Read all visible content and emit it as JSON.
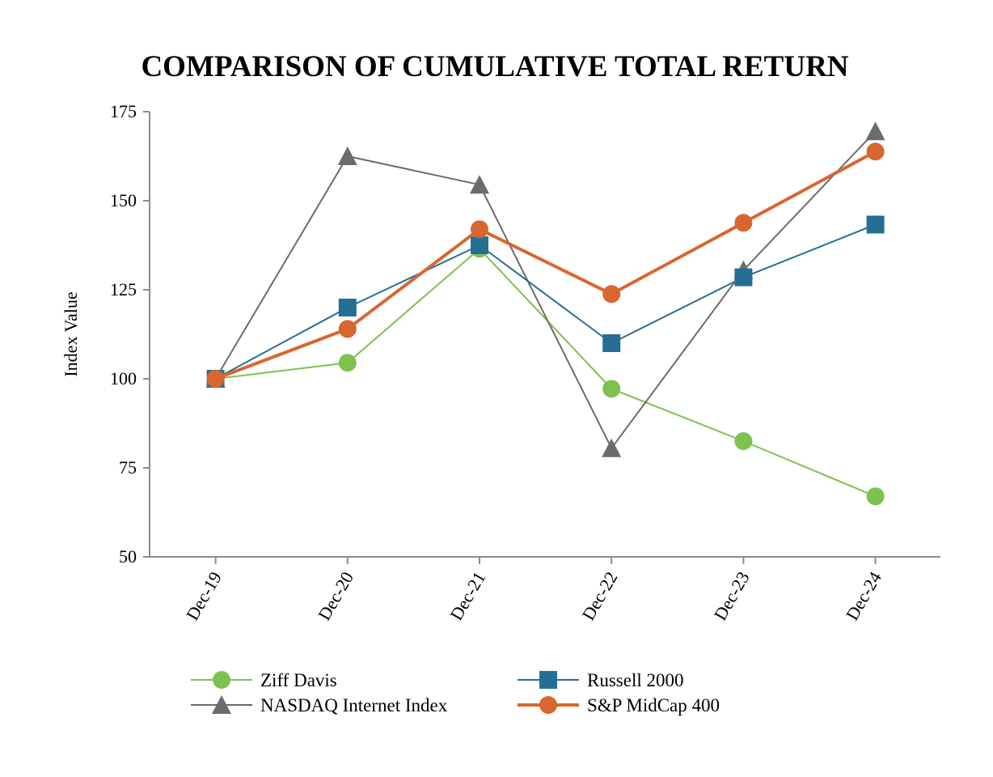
{
  "chart_data": {
    "type": "line",
    "title": "COMPARISON OF CUMULATIVE TOTAL RETURN",
    "xlabel": "",
    "ylabel": "Index Value",
    "ylim": [
      50,
      175
    ],
    "yticks": [
      "50",
      "75",
      "100",
      "125",
      "150",
      "175"
    ],
    "categories": [
      "Dec-19",
      "Dec-20",
      "Dec-21",
      "Dec-22",
      "Dec-23",
      "Dec-24"
    ],
    "grid": false,
    "legend_position": "bottom",
    "series": [
      {
        "name": "Ziff Davis",
        "values": [
          100,
          104.5,
          136.5,
          97.2,
          82.5,
          67
        ],
        "color": "#7dc24f",
        "marker": "circle",
        "line": "thin"
      },
      {
        "name": "Russell 2000",
        "values": [
          100,
          120,
          137.5,
          110,
          128.5,
          143.3
        ],
        "color": "#266f94",
        "marker": "square",
        "line": "thin"
      },
      {
        "name": "NASDAQ Internet Index",
        "values": [
          100,
          162.5,
          154.5,
          80.5,
          130.5,
          169.5
        ],
        "color": "#6b6b6b",
        "marker": "triangle",
        "line": "thin"
      },
      {
        "name": "S&P MidCap 400",
        "values": [
          100,
          114,
          142,
          123.8,
          143.8,
          163.8
        ],
        "color": "#d9662f",
        "marker": "circle",
        "line": "thick"
      }
    ]
  }
}
